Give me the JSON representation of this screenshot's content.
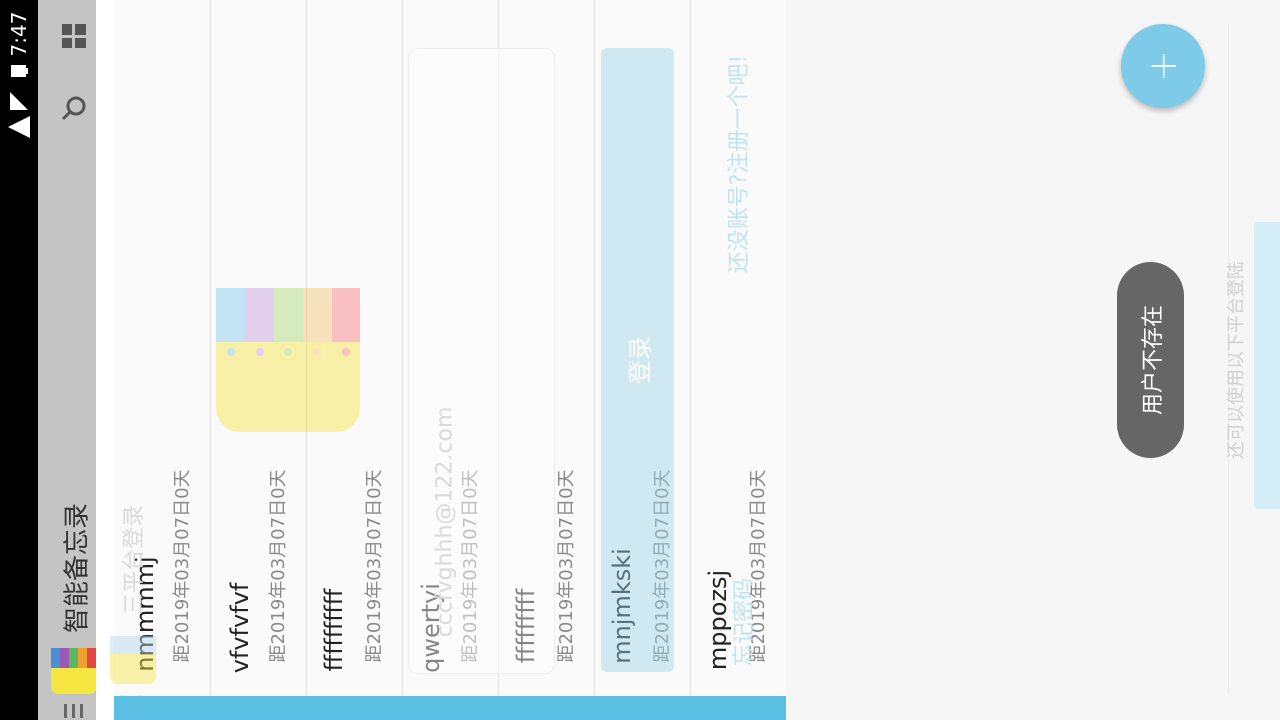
{
  "status_bar": {
    "time": "7:47",
    "icons": [
      "wifi-icon",
      "signal-icon",
      "battery-icon"
    ]
  },
  "toolbar": {
    "title": "智能备忘录",
    "menu_icon": "menu-icon",
    "search_icon": "search-icon",
    "grid_icon": "grid-view-icon"
  },
  "notes": [
    {
      "title": "nmmmmj",
      "subtitle": "距2019年03月07日0天"
    },
    {
      "title": "vfvfvfvf",
      "subtitle": "距2019年03月07日0天"
    },
    {
      "title": "ffffffffff",
      "subtitle": "距2019年03月07日0天"
    },
    {
      "title": "qwertyi",
      "subtitle": "距2019年03月07日0天"
    },
    {
      "title": "fffffffff",
      "subtitle": "距2019年03月07日0天"
    },
    {
      "title": "mnjmkski",
      "subtitle": "距2019年03月07日0天"
    },
    {
      "title": "mppozsj",
      "subtitle": "距2019年03月07日0天"
    }
  ],
  "login_dialog": {
    "header": "三平台登录",
    "email_value": "cccfvghhh@122.com",
    "forgot_password": "忘记密码",
    "login_button": "登录",
    "register_prompt": "还没账号?注册一个吧!",
    "other_platforms": "还可以使用以下平台登陆"
  },
  "fab": {
    "label": "+"
  },
  "toast": {
    "message": "用户不存在"
  },
  "colors": {
    "accent": "#5bbfe3",
    "fab": "#7dcbe8",
    "toolbar": "#c4c4c4",
    "toast": "#666666"
  }
}
